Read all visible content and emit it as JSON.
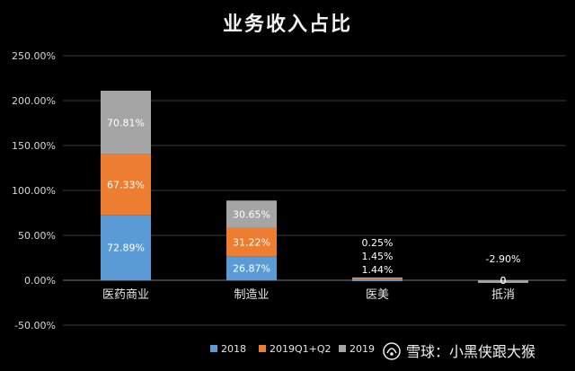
{
  "chart_data": {
    "type": "bar",
    "stacked": true,
    "title": "业务收入占比",
    "categories": [
      "医药商业",
      "制造业",
      "医美",
      "抵消"
    ],
    "series": [
      {
        "name": "2018",
        "values": [
          72.89,
          26.87,
          0.25,
          -0.01
        ],
        "labels": [
          "72.89%",
          "26.87%",
          "0.25%",
          "0"
        ],
        "color": "#5b9bd5"
      },
      {
        "name": "2019Q1+Q2",
        "values": [
          67.33,
          31.22,
          1.45,
          -0.01
        ],
        "labels": [
          "67.33%",
          "31.22%",
          "1.45%",
          "0"
        ],
        "color": "#ed7d31"
      },
      {
        "name": "2019",
        "values": [
          70.81,
          30.65,
          1.44,
          -2.9
        ],
        "labels": [
          "70.81%",
          "30.65%",
          "1.44%",
          "-2.90%"
        ],
        "color": "#a5a5a5"
      }
    ],
    "ylim": [
      -50,
      250
    ],
    "yticks": [
      "-50.00%",
      "0.00%",
      "50.00%",
      "100.00%",
      "150.00%",
      "200.00%",
      "250.00%"
    ],
    "xlabel": "",
    "ylabel": "",
    "grid": true,
    "legend_position": "bottom"
  },
  "watermark": {
    "brand": "雪球",
    "separator": "：",
    "author": "小黑侠跟大猴"
  }
}
